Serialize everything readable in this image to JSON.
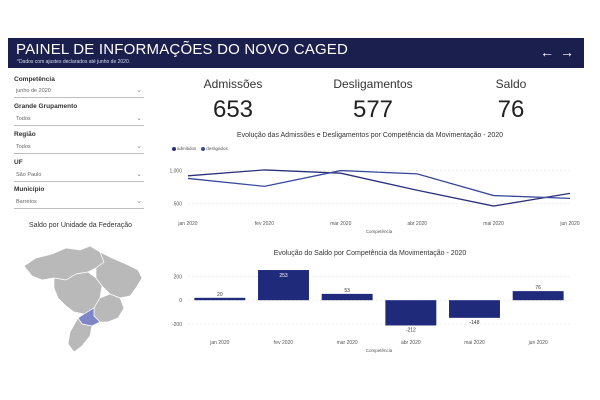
{
  "header": {
    "title": "PAINEL DE INFORMAÇÕES DO NOVO CAGED",
    "subtitle": "*Dados com ajustes declarados até junho de 2020.",
    "prev_glyph": "←",
    "next_glyph": "→"
  },
  "filters": [
    {
      "label": "Competência",
      "value": "junho de 2020"
    },
    {
      "label": "Grande Grupamento",
      "value": "Todos"
    },
    {
      "label": "Região",
      "value": "Todos"
    },
    {
      "label": "UF",
      "value": "São Paulo"
    },
    {
      "label": "Município",
      "value": "Barretos"
    }
  ],
  "map": {
    "title": "Saldo por Unidade da Federação",
    "base_color": "#b9b9b9",
    "highlight_color": "#7f86c6"
  },
  "kpis": [
    {
      "label": "Admissões",
      "value": "653"
    },
    {
      "label": "Desligamentos",
      "value": "577"
    },
    {
      "label": "Saldo",
      "value": "76"
    }
  ],
  "colors": {
    "admitidos": "#2b3178",
    "desligados": "#3a4a9a",
    "bar": "#1f2a7a"
  },
  "chart_data": [
    {
      "type": "line",
      "title": "Evolução das Admissões e Desligamentos por Competência da Movimentação - 2020",
      "xlabel": "Competência",
      "ylabel": "",
      "categories": [
        "jan 2020",
        "fev 2020",
        "mar 2020",
        "abr 2020",
        "mai 2020",
        "jun 2020"
      ],
      "series": [
        {
          "name": "admitidos",
          "values": [
            920,
            1010,
            960,
            700,
            460,
            653
          ]
        },
        {
          "name": "desligados",
          "values": [
            880,
            760,
            1000,
            950,
            620,
            577
          ]
        }
      ],
      "yticks": [
        "1,000",
        "500"
      ],
      "ylim": [
        400,
        1100
      ],
      "legend": "top-left"
    },
    {
      "type": "bar",
      "title": "Evolução do Saldo por Competência da Movimentação - 2020",
      "xlabel": "Competência",
      "ylabel": "",
      "categories": [
        "jan 2020",
        "fev 2020",
        "mar 2020",
        "abr 2020",
        "mai 2020",
        "jun 2020"
      ],
      "values": [
        20,
        253,
        53,
        -212,
        -148,
        76
      ],
      "labels": [
        "20",
        "253",
        "53",
        "-212",
        "-148",
        "76"
      ],
      "yticks": [
        "200",
        "0",
        "-200"
      ],
      "ylim": [
        -250,
        270
      ]
    }
  ]
}
